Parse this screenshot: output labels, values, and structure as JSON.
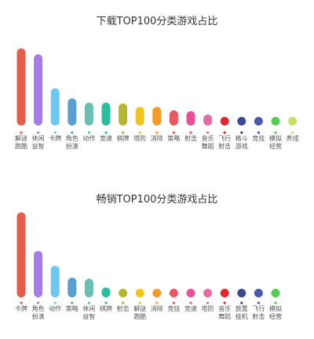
{
  "chart_data": [
    {
      "type": "bar",
      "title": "下载TOP100分类游戏占比",
      "xlabel": "",
      "ylabel": "",
      "ylim": [
        0,
        100
      ],
      "grid": false,
      "categories": [
        [
          "解谜",
          "跑酷"
        ],
        [
          "休闲",
          "益智"
        ],
        [
          "卡牌"
        ],
        [
          "角色",
          "扮演"
        ],
        [
          "动作"
        ],
        [
          "竞速"
        ],
        [
          "棋牌"
        ],
        [
          "塔防"
        ],
        [
          "消除"
        ],
        [
          "策略"
        ],
        [
          "射击"
        ],
        [
          "音乐",
          "舞蹈"
        ],
        [
          "飞行",
          "射击"
        ],
        [
          "格斗",
          "游戏"
        ],
        [
          "竞技"
        ],
        [
          "模拟",
          "经营"
        ],
        [
          "养成"
        ]
      ],
      "values": [
        91,
        84,
        44,
        32,
        27,
        27,
        26,
        22,
        22,
        18,
        17,
        13,
        8,
        8,
        8,
        8,
        4
      ],
      "colors": [
        "#e85d4a",
        "#a77be8",
        "#6cc8f0",
        "#5b9fd0",
        "#6bbfb0",
        "#2ebd9e",
        "#b6b530",
        "#f2c518",
        "#f59b2a",
        "#ea5560",
        "#ea4f9a",
        "#e86ba0",
        "#e0262f",
        "#3a4a8c",
        "#4a5aa8",
        "#55cc55",
        "#c5e060"
      ]
    },
    {
      "type": "bar",
      "title": "畅销TOP100分类游戏占比",
      "xlabel": "",
      "ylabel": "",
      "ylim": [
        0,
        100
      ],
      "grid": false,
      "categories": [
        [
          "卡牌"
        ],
        [
          "角色",
          "扮演"
        ],
        [
          "动作"
        ],
        [
          "策略"
        ],
        [
          "休闲",
          "益智"
        ],
        [
          "棋牌"
        ],
        [
          "射击"
        ],
        [
          "解谜",
          "跑酷"
        ],
        [
          "消除"
        ],
        [
          "竞技"
        ],
        [
          "竞速"
        ],
        [
          "塔防"
        ],
        [
          "音乐",
          "舞蹈"
        ],
        [
          "放置",
          "挂机"
        ],
        [
          "飞行",
          "射击"
        ],
        [
          "模拟",
          "经营"
        ]
      ],
      "values": [
        86,
        47,
        32,
        20,
        19,
        10,
        7,
        6,
        6,
        5,
        5,
        5,
        4,
        3,
        3,
        2
      ],
      "colors": [
        "#e85d4a",
        "#a77be8",
        "#6cc8f0",
        "#5b9fd0",
        "#6bbfb0",
        "#2ebd9e",
        "#b6b530",
        "#f2c518",
        "#f59b2a",
        "#ea5560",
        "#ea4f9a",
        "#e86ba0",
        "#e0262f",
        "#3a4a8c",
        "#4a5aa8",
        "#55cc55"
      ]
    }
  ]
}
